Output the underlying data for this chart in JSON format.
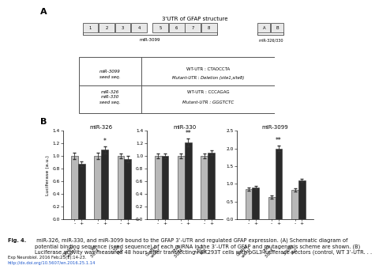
{
  "title_A": "A",
  "title_B": "B",
  "utr_title": "3'UTR of GFAP structure",
  "utr_boxes_num": [
    "1",
    "2",
    "3",
    "4",
    "5",
    "6",
    "7",
    "8"
  ],
  "utr_boxes_ab": [
    "A",
    "B"
  ],
  "mir3099_label": "miR-3099",
  "mir326_330_label": "miR-326/330",
  "bar_groups_order": [
    "miR-326",
    "miR-330",
    "miR-3099"
  ],
  "bar_groups": {
    "miR-326": {
      "ylim": [
        0,
        1.4
      ],
      "yticks": [
        0,
        0.2,
        0.4,
        0.6,
        0.8,
        1.0,
        1.2,
        1.4
      ],
      "ylabel": "Luciferase (a.u.)",
      "groups": [
        "Control\nvector",
        "WT\n3-UTR",
        "3-326\nMut"
      ],
      "minus_bars": [
        1.0,
        1.0,
        1.0
      ],
      "plus_bars": [
        0.88,
        1.1,
        0.95
      ],
      "minus_err": [
        0.05,
        0.05,
        0.04
      ],
      "plus_err": [
        0.04,
        0.06,
        0.05
      ],
      "significance": [
        null,
        "*",
        null
      ],
      "significance_pos": [
        null,
        1.18,
        null
      ]
    },
    "miR-330": {
      "ylim": [
        0,
        1.4
      ],
      "yticks": [
        0,
        0.2,
        0.4,
        0.6,
        0.8,
        1.0,
        1.2,
        1.4
      ],
      "ylabel": "",
      "groups": [
        "Control\nvector",
        "GFAP\n3-UTR",
        "3-330\nMut"
      ],
      "minus_bars": [
        1.0,
        1.0,
        1.0
      ],
      "plus_bars": [
        1.0,
        1.22,
        1.05
      ],
      "minus_err": [
        0.04,
        0.04,
        0.04
      ],
      "plus_err": [
        0.04,
        0.06,
        0.04
      ],
      "significance": [
        null,
        "**",
        null
      ],
      "significance_pos": [
        null,
        1.3,
        null
      ]
    },
    "miR-3099": {
      "ylim": [
        0,
        2.5
      ],
      "yticks": [
        0,
        0.5,
        1.0,
        1.5,
        2.0,
        2.5
      ],
      "ylabel": "",
      "groups": [
        "Control\nvector",
        "GFAP\n3-UTR",
        "3-3099\nMut"
      ],
      "minus_bars": [
        0.85,
        0.62,
        0.83
      ],
      "plus_bars": [
        0.9,
        2.0,
        1.1
      ],
      "minus_err": [
        0.05,
        0.04,
        0.05
      ],
      "plus_err": [
        0.05,
        0.08,
        0.05
      ],
      "significance": [
        null,
        "**",
        null
      ],
      "significance_pos": [
        null,
        2.12,
        null
      ]
    }
  },
  "fig_caption_bold": "Fig. 4.",
  "fig_caption_rest": " miR-326, miR-330, and miR-3099 bound to the GFAP 3’-UTR and regulated GFAP expression. (A) Schematic diagram of\npotential binding sequence (seed sequence) of each miRNA in the 3’-UTR of GFAP and mutagenesis scheme are shown. (B)\nLuciferase activity was measured 48 hours after transfecting HEK293T cells with pGL3-luciferase vectors (control, WT 3’-UTR. . .",
  "journal_line1": "Exp Neurobiol. 2016 Feb;25(1):14-23.",
  "journal_line2": "http://dx.doi.org/10.5607/en.2016.25.1.14",
  "bg_color": "#ffffff"
}
